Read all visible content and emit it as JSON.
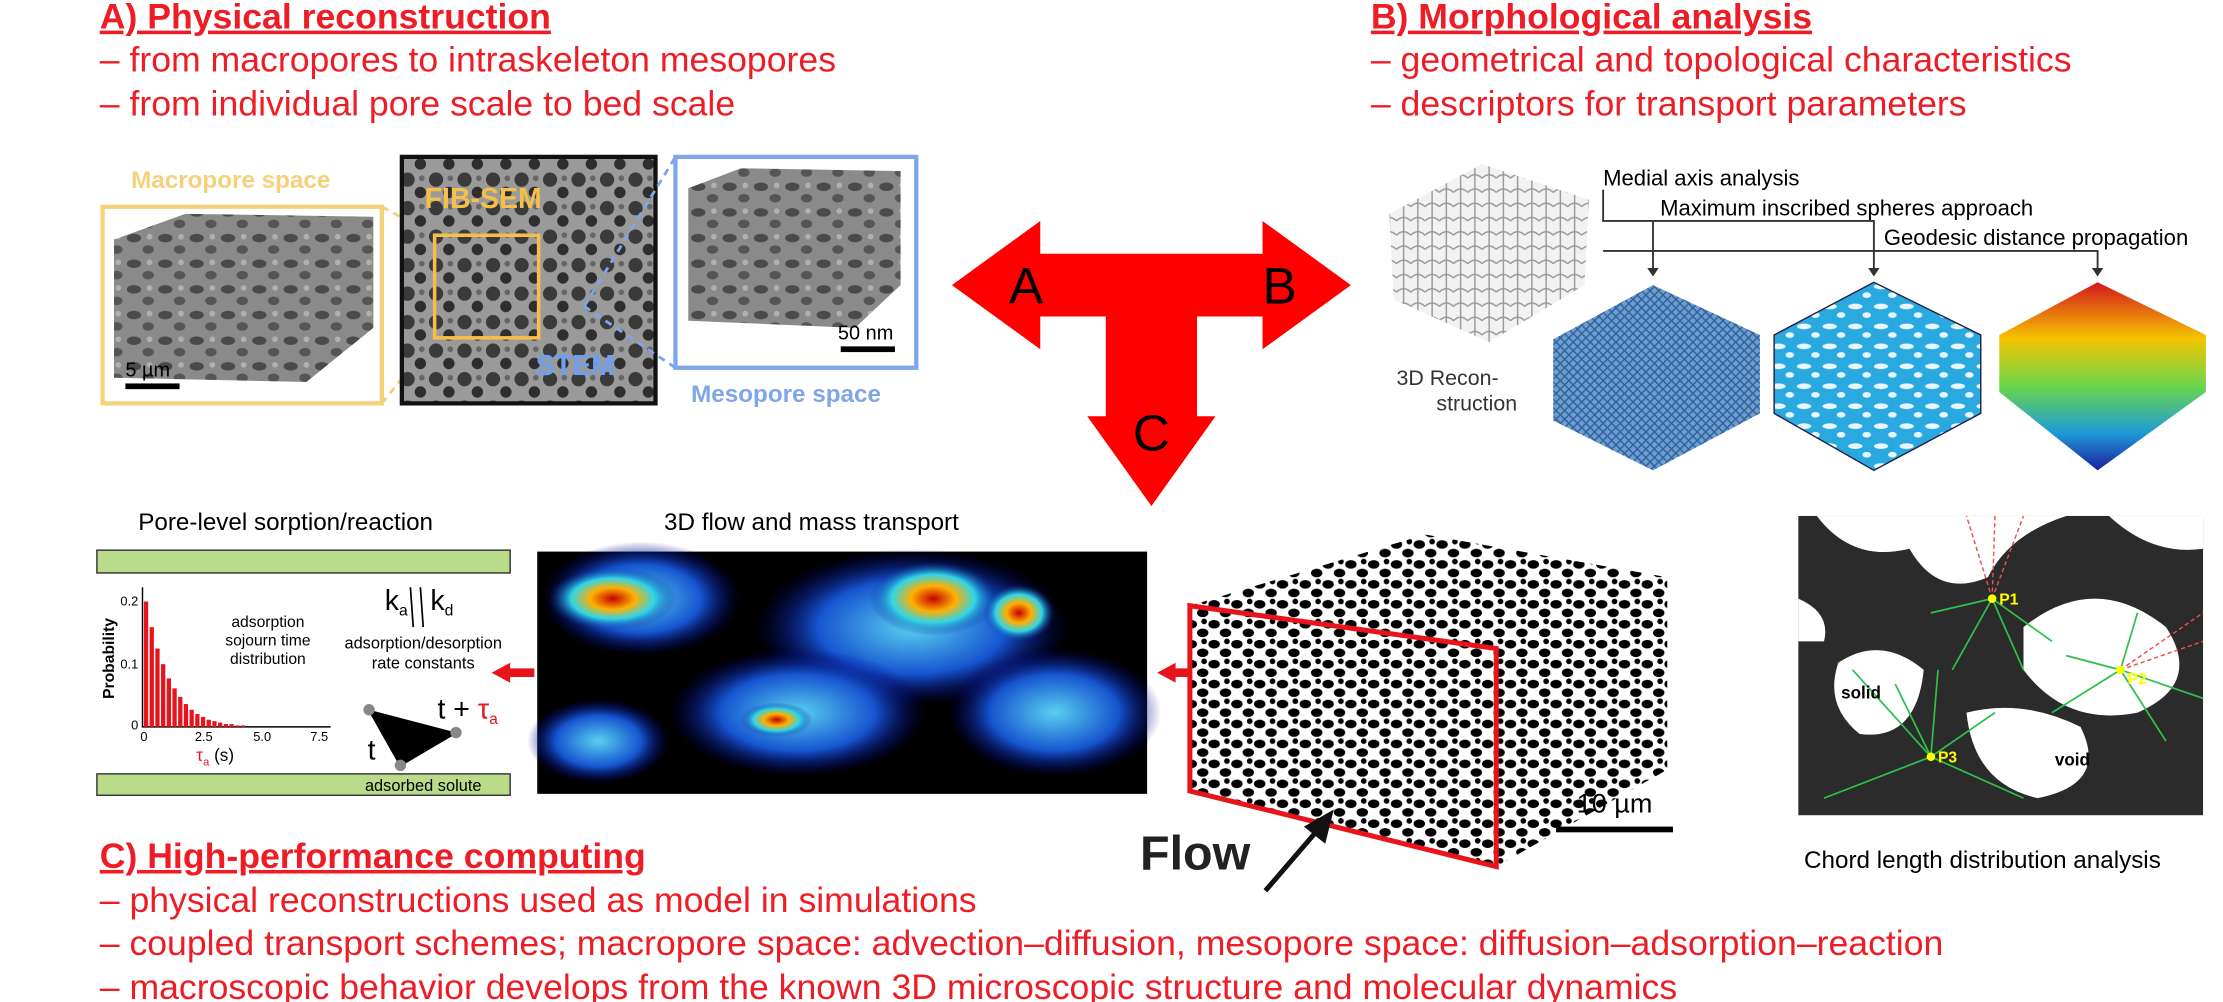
{
  "panel_a": {
    "title": "A) Physical reconstruction",
    "lines": [
      "– from macropores to intraskeleton mesopores",
      "– from individual pore scale to bed scale"
    ],
    "labels": {
      "macropore": "Macropore space",
      "fib_sem": "FIB-SEM",
      "stem": "STEM",
      "mesopore": "Mesopore space",
      "scale_macro": "5 µm",
      "scale_meso": "50 nm"
    }
  },
  "panel_b": {
    "title": "B) Morphological analysis",
    "lines": [
      "– geometrical and topological characteristics",
      "– descriptors for transport parameters"
    ],
    "methods": [
      "Medial axis analysis",
      "Maximum inscribed spheres approach",
      "Geodesic distance propagation"
    ],
    "reconstruction": [
      "3D Recon-",
      "struction"
    ],
    "chord_title": "Chord length distribution analysis",
    "chord_labels": {
      "solid": "solid",
      "void": "void",
      "points": [
        "P1",
        "P2",
        "P3"
      ]
    }
  },
  "panel_c": {
    "title": "C) High-performance computing",
    "lines": [
      "– physical reconstructions used as model in simulations",
      "– coupled transport schemes; macropore space: advection–diffusion, mesopore space: diffusion–adsorption–reaction",
      "– macroscopic behavior develops from the known 3D microscopic structure and molecular dynamics"
    ],
    "sorption_title": "Pore-level sorption/reaction",
    "flow_title": "3D flow and mass transport",
    "flow_label": "Flow",
    "scale_flow": "10 µm"
  },
  "arrow_letters": [
    "A",
    "B",
    "C"
  ],
  "sorption": {
    "y_label": "Probability",
    "y_ticks": [
      "0",
      "0.1",
      "0.2"
    ],
    "x_ticks": [
      "0",
      "2.5",
      "5.0",
      "7.5"
    ],
    "x_label": {
      "symbol": "τ",
      "sub": "a",
      "unit": " (s)"
    },
    "histogram_note": [
      "adsorption",
      "sojourn time",
      "distribution"
    ],
    "ka": {
      "base": "k",
      "sub": "a"
    },
    "kd": {
      "base": "k",
      "sub": "d"
    },
    "rate_note": [
      "adsorption/desorption",
      "rate constants"
    ],
    "t": "t",
    "t_plus": {
      "base": "t + ",
      "symbol": "τ",
      "sub": "a"
    },
    "solute": "adsorbed solute"
  }
}
